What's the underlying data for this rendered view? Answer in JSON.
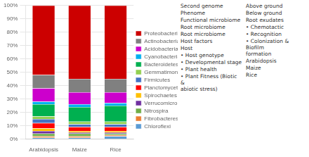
{
  "chart_data": {
    "type": "bar",
    "stacked": true,
    "categories": [
      "Arabidopsis",
      "Maize",
      "Rice"
    ],
    "series": [
      {
        "name": "Chloroflexi",
        "color": "#5B9BD5",
        "values": [
          1,
          1,
          2
        ]
      },
      {
        "name": "Fibrobacteres",
        "color": "#ED7D31",
        "values": [
          1,
          1,
          1
        ]
      },
      {
        "name": "Nitrospira",
        "color": "#70AD47",
        "values": [
          2,
          2,
          1
        ]
      },
      {
        "name": "Verrucomicrobia",
        "color": "#7030A0",
        "values": [
          2,
          1,
          1
        ]
      },
      {
        "name": "Spirochaetes",
        "color": "#FFC000",
        "values": [
          2,
          1,
          1
        ]
      },
      {
        "name": "Planctomycetes",
        "color": "#FF0000",
        "values": [
          4,
          3,
          3
        ]
      },
      {
        "name": "Firmicutes",
        "color": "#4472C4",
        "values": [
          3,
          2,
          2
        ]
      },
      {
        "name": "Gemmatimonadetes",
        "color": "#92D050",
        "values": [
          2,
          2,
          2
        ]
      },
      {
        "name": "Bacteroidetes",
        "color": "#00B050",
        "values": [
          9,
          11,
          12
        ]
      },
      {
        "name": "Cyanobacteria",
        "color": "#00B0F0",
        "values": [
          2,
          2,
          2
        ]
      },
      {
        "name": "Acidobacteria",
        "color": "#CC00CC",
        "values": [
          10,
          9,
          8
        ]
      },
      {
        "name": "Actinobacteria",
        "color": "#808080",
        "values": [
          10,
          10,
          10
        ]
      },
      {
        "name": "Proteobacteria",
        "color": "#CC0000",
        "values": [
          52,
          55,
          55
        ]
      }
    ],
    "ylim": [
      0,
      100
    ],
    "yticks": [
      {
        "value": 0,
        "label": "0%"
      },
      {
        "value": 10,
        "label": "10%"
      },
      {
        "value": 20,
        "label": "20%"
      },
      {
        "value": 30,
        "label": "30%"
      },
      {
        "value": 40,
        "label": "40%"
      },
      {
        "value": 50,
        "label": "50%"
      },
      {
        "value": 60,
        "label": "60%"
      },
      {
        "value": 70,
        "label": "70%"
      },
      {
        "value": 80,
        "label": "80%"
      },
      {
        "value": 90,
        "label": "90%"
      },
      {
        "value": 100,
        "label": "100%"
      }
    ],
    "grid": true,
    "legend": "right",
    "annotations": [
      "Second genome",
      "Phenome",
      "Functional microbiome",
      "Root microbiome",
      "Root microbiome",
      "Host factors",
      "Host",
      "• Host genotype",
      "• Developmental stage",
      "• Plant health",
      "• Plant Fitness (Biotic &\nabiotic stress)",
      "Above ground",
      "Below ground",
      "Root exudates",
      "• Chemotactic",
      "• Recognition",
      "• Colonization & Biofilm\nformation",
      "Arabidopsis",
      "Maize",
      "Rice"
    ]
  }
}
